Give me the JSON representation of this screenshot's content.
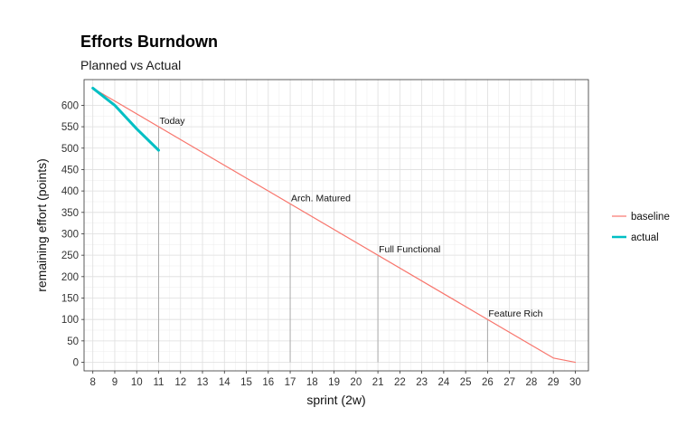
{
  "chart_data": {
    "type": "line",
    "title": "Efforts Burndown",
    "subtitle": "Planned vs Actual",
    "xlabel": "sprint (2w)",
    "ylabel": "remaining effort (points)",
    "xlim": [
      7.6,
      30.6
    ],
    "ylim": [
      -20,
      660
    ],
    "x_ticks": [
      8,
      9,
      10,
      11,
      12,
      13,
      14,
      15,
      16,
      17,
      18,
      19,
      20,
      21,
      22,
      23,
      24,
      25,
      26,
      27,
      28,
      29,
      30
    ],
    "y_ticks": [
      0,
      50,
      100,
      150,
      200,
      250,
      300,
      350,
      400,
      450,
      500,
      550,
      600
    ],
    "grid": true,
    "legend_position": "right",
    "series": [
      {
        "name": "baseline",
        "color": "#F8766D",
        "x": [
          8,
          29,
          30
        ],
        "y": [
          640,
          10,
          0
        ]
      },
      {
        "name": "actual",
        "color": "#00BFC4",
        "x": [
          8,
          9,
          10,
          11
        ],
        "y": [
          640,
          600,
          545,
          495
        ]
      }
    ],
    "annotations": [
      {
        "label": "Today",
        "x": 11,
        "y": 550
      },
      {
        "label": "Arch. Matured",
        "x": 17,
        "y": 370
      },
      {
        "label": "Full Functional",
        "x": 21,
        "y": 250
      },
      {
        "label": "Feature Rich",
        "x": 26,
        "y": 100
      }
    ]
  }
}
